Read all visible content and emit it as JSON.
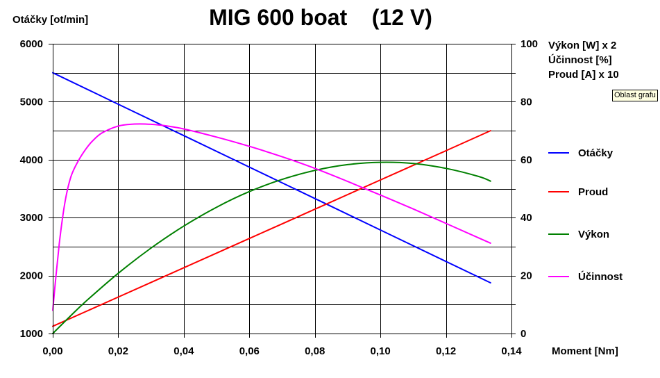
{
  "tooltip": "Oblast grafu",
  "chart_data": {
    "type": "line",
    "title": "MIG 600 boat    (12 V)",
    "xlabel": "Moment [Nm]",
    "ylabel": "Otáčky [ot/min]",
    "y2labels": [
      "Výkon [W] x 2",
      "Účinnost [%]",
      "Proud [A] x 10"
    ],
    "xlim": [
      0,
      0.14
    ],
    "ylim": [
      1000,
      6000
    ],
    "y2lim": [
      0,
      100
    ],
    "xticks": [
      0,
      0.02,
      0.04,
      0.06,
      0.08,
      0.1,
      0.12,
      0.14
    ],
    "xtick_labels": [
      "0,00",
      "0,02",
      "0,04",
      "0,06",
      "0,08",
      "0,10",
      "0,12",
      "0,14"
    ],
    "yticks": [
      6000,
      5000,
      4000,
      3000,
      2000,
      1000
    ],
    "ytick_labels": [
      "6000",
      "5000",
      "4000",
      "3000",
      "2000",
      "1000"
    ],
    "y2ticks": [
      100,
      80,
      60,
      40,
      20,
      0
    ],
    "y2tick_labels": [
      "100",
      "80",
      "60",
      "40",
      "20",
      "0"
    ],
    "y2_grid_step": 10,
    "grid": true,
    "legend": "right",
    "series": [
      {
        "name": "Otáčky",
        "secondary_axis": false,
        "color": "#0000ff",
        "x": [
          0,
          0.02,
          0.04,
          0.06,
          0.08,
          0.1,
          0.12,
          0.1336
        ],
        "y": [
          5500,
          4957,
          4415,
          3872,
          3330,
          2787,
          2244,
          1875
        ]
      },
      {
        "name": "Proud",
        "secondary_axis": true,
        "color": "#ff0000",
        "x": [
          0,
          0.02,
          0.04,
          0.06,
          0.08,
          0.1,
          0.12,
          0.1336
        ],
        "y": [
          2.5,
          12.6,
          22.7,
          32.8,
          42.9,
          53.0,
          63.1,
          70.0
        ]
      },
      {
        "name": "Výkon",
        "secondary_axis": true,
        "color": "#008000",
        "x": [
          0,
          0.005,
          0.01,
          0.02,
          0.03,
          0.04,
          0.05,
          0.06,
          0.07,
          0.08,
          0.09,
          0.1,
          0.11,
          0.12,
          0.13,
          0.1336
        ],
        "y": [
          0,
          5.6,
          11.0,
          20.8,
          29.5,
          37.1,
          43.6,
          49.0,
          53.2,
          56.3,
          58.3,
          59.1,
          58.7,
          57.0,
          54.2,
          52.6
        ]
      },
      {
        "name": "Účinnost",
        "secondary_axis": true,
        "color": "#ff00ff",
        "x": [
          0,
          0.001,
          0.002,
          0.003,
          0.004,
          0.005,
          0.006,
          0.008,
          0.01,
          0.012,
          0.015,
          0.02,
          0.025,
          0.03,
          0.035,
          0.04,
          0.05,
          0.06,
          0.07,
          0.08,
          0.09,
          0.1,
          0.11,
          0.12,
          0.13,
          0.1336
        ],
        "y": [
          8.0,
          20.0,
          31.0,
          40.0,
          47.0,
          52.0,
          55.5,
          60.0,
          63.5,
          66.3,
          69.2,
          71.6,
          72.3,
          72.2,
          71.6,
          70.6,
          67.8,
          64.6,
          61.0,
          57.0,
          52.5,
          47.8,
          43.0,
          38.0,
          33.0,
          31.2
        ]
      }
    ]
  }
}
